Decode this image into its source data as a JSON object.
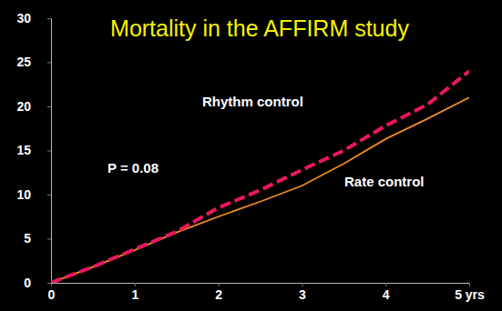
{
  "chart_data": {
    "type": "line",
    "title": "Mortality in the AFFIRM study",
    "x": [
      0,
      0.5,
      1,
      1.5,
      2,
      2.5,
      3,
      3.5,
      4,
      4.5,
      5
    ],
    "series": [
      {
        "name": "Rhythm control",
        "color": "#e8195a",
        "line_style": "dashed",
        "values": [
          0,
          1.8,
          3.8,
          5.8,
          8.5,
          10.5,
          12.8,
          15,
          17.8,
          20.2,
          24
        ]
      },
      {
        "name": "Rate control",
        "color": "#f08c1e",
        "line_style": "solid",
        "values": [
          0,
          1.8,
          3.7,
          5.7,
          7.5,
          9.2,
          11,
          13.5,
          16.3,
          18.6,
          21
        ]
      }
    ],
    "annotations": [
      "P = 0.08"
    ],
    "xlim": [
      0,
      5
    ],
    "xticks": [
      0,
      1,
      2,
      3,
      4,
      {
        "value": 5,
        "label": "5 yrs"
      }
    ],
    "ylim": [
      0,
      30
    ],
    "yticks": [
      0,
      5,
      10,
      15,
      20,
      25,
      30
    ],
    "grid": false
  }
}
